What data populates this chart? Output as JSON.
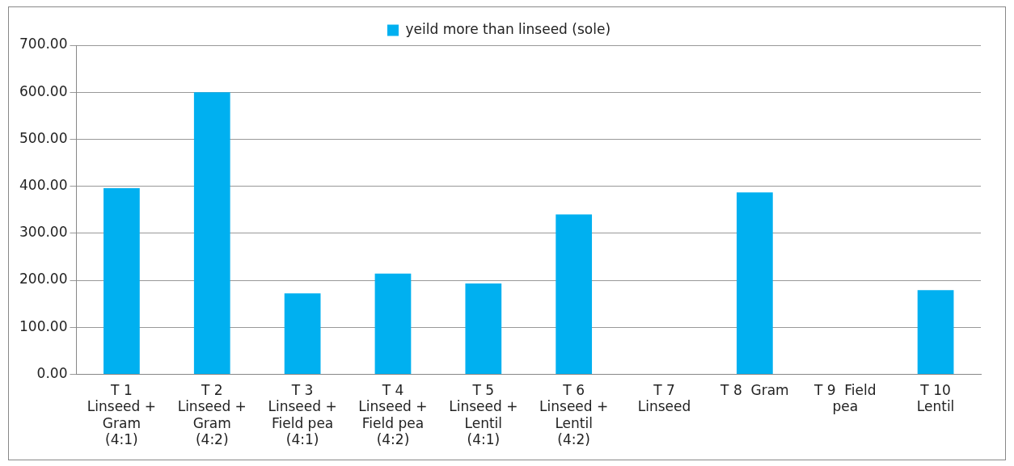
{
  "chart_data": {
    "type": "bar",
    "categories": [
      "T 1\nLinseed +\nGram\n(4:1)",
      "T 2\nLinseed +\nGram\n(4:2)",
      "T 3\nLinseed +\nField pea\n(4:1)",
      "T 4\nLinseed +\nField pea\n(4:2)",
      "T 5\nLinseed +\nLentil\n(4:1)",
      "T 6\nLinseed +\nLentil\n(4:2)",
      "T 7\nLinseed",
      "T 8  Gram",
      "T 9  Field\npea",
      "T 10\nLentil"
    ],
    "series": [
      {
        "name": "yeild more than linseed (sole)",
        "color": "#00b0f0",
        "values": [
          396,
          600,
          172,
          214,
          193,
          340,
          0,
          387,
          0,
          179
        ]
      }
    ],
    "ylim": [
      0,
      700
    ],
    "yticks": [
      {
        "value": 0,
        "label": "0.00"
      },
      {
        "value": 100,
        "label": "100.00"
      },
      {
        "value": 200,
        "label": "200.00"
      },
      {
        "value": 300,
        "label": "300.00"
      },
      {
        "value": 400,
        "label": "400.00"
      },
      {
        "value": 500,
        "label": "500.00"
      },
      {
        "value": 600,
        "label": "600.00"
      },
      {
        "value": 700,
        "label": "700.00"
      }
    ],
    "grid": "y",
    "legend": "top"
  }
}
